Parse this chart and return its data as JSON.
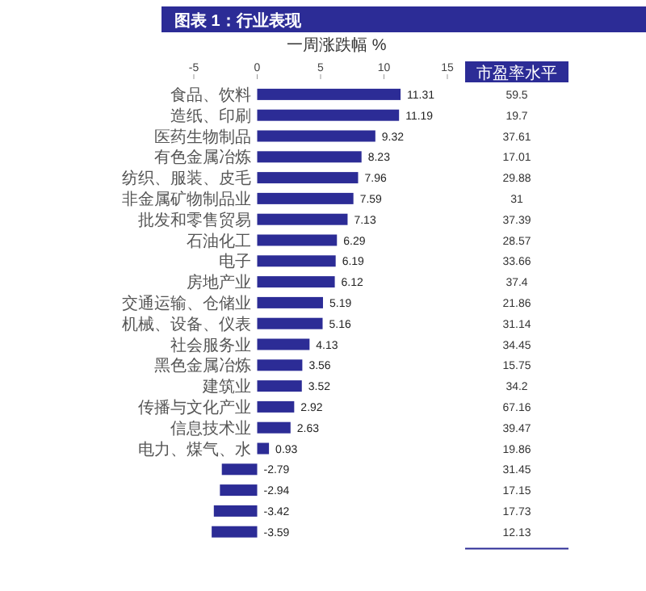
{
  "chart_data": [
    {
      "type": "bar",
      "orientation": "horizontal",
      "title": "图表 1：行业表现",
      "xlabel": "一周涨跌幅 %",
      "color": "#2c2c96",
      "categories": [
        "食品、饮料",
        "造纸、印刷",
        "医药生物制品",
        "有色金属冶炼",
        "纺织、服装、皮毛",
        "非金属矿物制品业",
        "批发和零售贸易",
        "石油化工",
        "电子",
        "房地产业",
        "交通运输、仓储业",
        "机械、设备、仪表",
        "社会服务业",
        "黑色金属冶炼",
        "建筑业",
        "传播与文化产业",
        "信息技术业",
        "电力、煤气、水",
        null,
        null,
        null,
        null
      ],
      "values": [
        11.31,
        11.19,
        9.32,
        8.23,
        7.96,
        7.59,
        7.13,
        6.29,
        6.19,
        6.12,
        5.19,
        5.16,
        4.13,
        3.56,
        3.52,
        2.92,
        2.63,
        0.93,
        -2.79,
        -2.94,
        -3.42,
        -3.59
      ],
      "xlim": [
        -5,
        15
      ],
      "xticks": [
        -5,
        0,
        5,
        10,
        15
      ],
      "data_labels": true
    },
    {
      "type": "other",
      "title": "市盈率水平",
      "color": "#2c2c96",
      "annotations": [
        "59.5",
        "19.7",
        "37.61",
        "17.01",
        "29.88",
        "31",
        "37.39",
        "28.57",
        "33.66",
        "37.4",
        "21.86",
        "31.14",
        "34.45",
        "15.75",
        "34.2",
        "67.16",
        "39.47",
        "19.86",
        "31.45",
        "17.15",
        "17.73",
        "12.13"
      ]
    }
  ]
}
